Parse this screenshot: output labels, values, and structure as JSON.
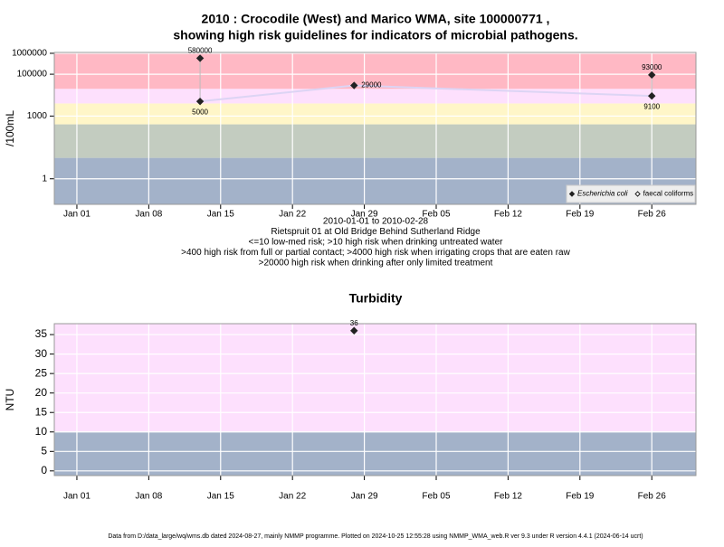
{
  "chart_data": [
    {
      "type": "scatter",
      "title": "2010 : Crocodile (West) and Marico WMA, site 100000771 ,",
      "subtitle": "showing high risk guidelines for indicators of microbial pathogens.",
      "notes": [
        "2010-01-01 to 2010-02-28",
        "Rietspruit 01 at Old Bridge Behind Sutherland Ridge",
        "<=10 low-med risk; >10 high risk when drinking untreated water",
        ">400 high risk from full or partial contact; >4000 high risk when irrigating crops that are eaten raw",
        ">20000 high risk when drinking after only limited treatment"
      ],
      "ylabel": "/100mL",
      "log_scale": true,
      "grid": true,
      "legend": "bottom-right",
      "xlim": [
        -1.2,
        61.3
      ],
      "xticks": [
        {
          "value": 1,
          "label": "Jan 01"
        },
        {
          "value": 8,
          "label": "Jan 08"
        },
        {
          "value": 15,
          "label": "Jan 15"
        },
        {
          "value": 22,
          "label": "Jan 22"
        },
        {
          "value": 29,
          "label": "Jan 29"
        },
        {
          "value": 36,
          "label": "Feb 05"
        },
        {
          "value": 43,
          "label": "Feb 12"
        },
        {
          "value": 50,
          "label": "Feb 19"
        },
        {
          "value": 57,
          "label": "Feb 26"
        }
      ],
      "ylim": [
        0.06,
        1100000
      ],
      "yticks": [
        1,
        1000,
        100000,
        1000000
      ],
      "thresholds": [
        10,
        400,
        4000,
        20000
      ],
      "band_colors": [
        "#a3b2c9",
        "#c3ccc0",
        "#fff6c8",
        "#fde0fd",
        "#ffb8c4"
      ],
      "series": [
        {
          "name": "Escherichia coli",
          "color": "#222222",
          "marker": "filled",
          "x": [
            13,
            28,
            57
          ],
          "values": [
            5000,
            29000,
            9100
          ]
        },
        {
          "name": "faecal coliforms",
          "color": "#222222",
          "marker": "open",
          "x": [
            13,
            28,
            57
          ],
          "values": [
            580000,
            null,
            93000
          ]
        }
      ]
    },
    {
      "type": "scatter",
      "title": "Turbidity",
      "ylabel": "NTU",
      "grid": true,
      "xlim": [
        -1.2,
        61.3
      ],
      "xticks": [
        {
          "value": 1,
          "label": "Jan 01"
        },
        {
          "value": 8,
          "label": "Jan 08"
        },
        {
          "value": 15,
          "label": "Jan 15"
        },
        {
          "value": 22,
          "label": "Jan 22"
        },
        {
          "value": 29,
          "label": "Jan 29"
        },
        {
          "value": 36,
          "label": "Feb 05"
        },
        {
          "value": 43,
          "label": "Feb 12"
        },
        {
          "value": 50,
          "label": "Feb 19"
        },
        {
          "value": 57,
          "label": "Feb 26"
        }
      ],
      "ylim": [
        -1.2,
        37.8
      ],
      "yticks": [
        0,
        5,
        10,
        15,
        20,
        25,
        30,
        35
      ],
      "thresholds": [
        10
      ],
      "band_colors": [
        "#a3b2c9",
        "#fde0fd"
      ],
      "series": [
        {
          "name": "Turbidity",
          "color": "#222222",
          "marker": "filled",
          "x": [
            28
          ],
          "values": [
            36
          ]
        }
      ]
    }
  ],
  "footer": "Data from D:/data_large/wq/wms.db dated 2024-08-27, mainly NMMP programme. Plotted on 2024-10-25 12:55:28 using NMMP_WMA_web.R ver 9.3 under R version 4.4.1 (2024-06-14 ucrt)"
}
